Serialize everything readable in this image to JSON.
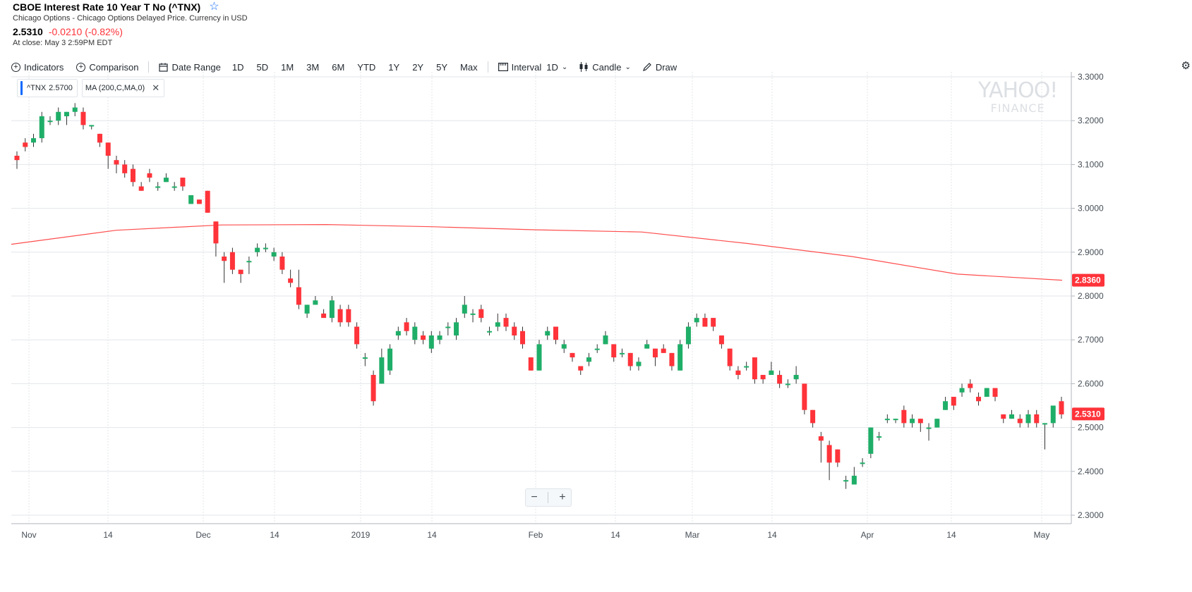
{
  "quote": {
    "title": "CBOE Interest Rate 10 Year T No (^TNX)",
    "exchange": "Chicago Options - Chicago Options Delayed Price. Currency in USD",
    "price": "2.5310",
    "change": "-0.0210 (-0.82%)",
    "close_time": "At close: May 3 2:59PM EDT"
  },
  "toolbar": {
    "indicators": "Indicators",
    "comparison": "Comparison",
    "date_range": "Date Range",
    "ranges": [
      "1D",
      "5D",
      "1M",
      "3M",
      "6M",
      "YTD",
      "1Y",
      "2Y",
      "5Y",
      "Max"
    ],
    "interval": "Interval",
    "interval_value": "1D",
    "chart_type": "Candle",
    "draw": "Draw",
    "icons": [
      "plus-circle-icon",
      "calendar-icon",
      "interval-icon",
      "candle-icon",
      "pencil-icon",
      "gear-icon"
    ]
  },
  "legend": {
    "symbol": "^TNX",
    "symbol_value": "2.5700",
    "indicator": "MA (200,C,MA,0)"
  },
  "watermark": {
    "line1": "YAHOO!",
    "line2": "FINANCE"
  },
  "zoom": {
    "minus": "−",
    "plus": "+"
  },
  "colors": {
    "up": "#1fae68",
    "down": "#ff333a",
    "ma": "#ff4d4d",
    "grid": "#e3e6ea"
  },
  "chart_data": {
    "type": "candlestick",
    "ylim": [
      2.28,
      3.3
    ],
    "y_ticks": [
      "3.3000",
      "3.2000",
      "3.1000",
      "3.0000",
      "2.9000",
      "2.8000",
      "2.7000",
      "2.6000",
      "2.5000",
      "2.4000",
      "2.3000"
    ],
    "x_ticks": [
      "Nov",
      "14",
      "Dec",
      "14",
      "2019",
      "14",
      "Feb",
      "14",
      "Mar",
      "14",
      "Apr",
      "14",
      "May"
    ],
    "price_label": "2.5310",
    "ma_label": "2.8360",
    "ma_series": {
      "name": "MA (200,C,MA,0)",
      "values": [
        2.918,
        2.95,
        2.962,
        2.963,
        2.958,
        2.951,
        2.946,
        2.92,
        2.89,
        2.85,
        2.836
      ]
    },
    "candles": [
      [
        3.12,
        3.11,
        3.13,
        3.09
      ],
      [
        3.15,
        3.14,
        3.16,
        3.13
      ],
      [
        3.15,
        3.16,
        3.17,
        3.14
      ],
      [
        3.16,
        3.21,
        3.22,
        3.15
      ],
      [
        3.2,
        3.2,
        3.21,
        3.19
      ],
      [
        3.2,
        3.22,
        3.23,
        3.19
      ],
      [
        3.21,
        3.22,
        3.22,
        3.19
      ],
      [
        3.22,
        3.23,
        3.24,
        3.21
      ],
      [
        3.22,
        3.19,
        3.23,
        3.18
      ],
      [
        3.19,
        3.19,
        3.19,
        3.18
      ],
      [
        3.17,
        3.15,
        3.17,
        3.14
      ],
      [
        3.15,
        3.12,
        3.15,
        3.09
      ],
      [
        3.11,
        3.1,
        3.12,
        3.08
      ],
      [
        3.1,
        3.08,
        3.11,
        3.07
      ],
      [
        3.09,
        3.06,
        3.1,
        3.05
      ],
      [
        3.05,
        3.04,
        3.06,
        3.04
      ],
      [
        3.08,
        3.07,
        3.09,
        3.06
      ],
      [
        3.05,
        3.05,
        3.06,
        3.04
      ],
      [
        3.06,
        3.07,
        3.08,
        3.06
      ],
      [
        3.05,
        3.05,
        3.06,
        3.04
      ],
      [
        3.07,
        3.05,
        3.07,
        3.04
      ],
      [
        3.01,
        3.03,
        3.03,
        3.01
      ],
      [
        3.02,
        3.01,
        3.02,
        3.01
      ],
      [
        3.04,
        2.99,
        3.04,
        2.99
      ],
      [
        2.97,
        2.92,
        2.97,
        2.89
      ],
      [
        2.89,
        2.88,
        2.9,
        2.83
      ],
      [
        2.9,
        2.86,
        2.91,
        2.85
      ],
      [
        2.86,
        2.85,
        2.86,
        2.83
      ],
      [
        2.88,
        2.88,
        2.89,
        2.85
      ],
      [
        2.9,
        2.91,
        2.92,
        2.89
      ],
      [
        2.91,
        2.91,
        2.92,
        2.9
      ],
      [
        2.89,
        2.9,
        2.91,
        2.88
      ],
      [
        2.89,
        2.86,
        2.9,
        2.85
      ],
      [
        2.84,
        2.83,
        2.86,
        2.82
      ],
      [
        2.82,
        2.78,
        2.86,
        2.77
      ],
      [
        2.76,
        2.78,
        2.78,
        2.75
      ],
      [
        2.78,
        2.79,
        2.8,
        2.78
      ],
      [
        2.76,
        2.75,
        2.77,
        2.75
      ],
      [
        2.75,
        2.79,
        2.8,
        2.74
      ],
      [
        2.77,
        2.74,
        2.78,
        2.73
      ],
      [
        2.77,
        2.74,
        2.78,
        2.73
      ],
      [
        2.73,
        2.69,
        2.74,
        2.68
      ],
      [
        2.66,
        2.66,
        2.67,
        2.64
      ],
      [
        2.62,
        2.56,
        2.63,
        2.55
      ],
      [
        2.6,
        2.66,
        2.68,
        2.6
      ],
      [
        2.63,
        2.68,
        2.69,
        2.62
      ],
      [
        2.71,
        2.72,
        2.73,
        2.7
      ],
      [
        2.74,
        2.72,
        2.75,
        2.71
      ],
      [
        2.7,
        2.73,
        2.74,
        2.69
      ],
      [
        2.71,
        2.7,
        2.72,
        2.69
      ],
      [
        2.68,
        2.71,
        2.72,
        2.67
      ],
      [
        2.7,
        2.71,
        2.72,
        2.69
      ],
      [
        2.73,
        2.73,
        2.74,
        2.71
      ],
      [
        2.71,
        2.74,
        2.75,
        2.7
      ],
      [
        2.76,
        2.78,
        2.8,
        2.75
      ],
      [
        2.76,
        2.76,
        2.77,
        2.74
      ],
      [
        2.77,
        2.75,
        2.78,
        2.74
      ],
      [
        2.72,
        2.72,
        2.73,
        2.71
      ],
      [
        2.73,
        2.74,
        2.76,
        2.72
      ],
      [
        2.75,
        2.73,
        2.76,
        2.72
      ],
      [
        2.73,
        2.71,
        2.74,
        2.7
      ],
      [
        2.72,
        2.69,
        2.73,
        2.68
      ],
      [
        2.66,
        2.63,
        2.66,
        2.63
      ],
      [
        2.63,
        2.69,
        2.7,
        2.63
      ],
      [
        2.71,
        2.72,
        2.73,
        2.7
      ],
      [
        2.73,
        2.7,
        2.73,
        2.69
      ],
      [
        2.68,
        2.69,
        2.7,
        2.67
      ],
      [
        2.67,
        2.66,
        2.67,
        2.65
      ],
      [
        2.64,
        2.63,
        2.64,
        2.62
      ],
      [
        2.65,
        2.66,
        2.67,
        2.64
      ],
      [
        2.68,
        2.68,
        2.69,
        2.67
      ],
      [
        2.69,
        2.71,
        2.72,
        2.69
      ],
      [
        2.69,
        2.66,
        2.69,
        2.65
      ],
      [
        2.67,
        2.67,
        2.68,
        2.66
      ],
      [
        2.67,
        2.64,
        2.67,
        2.63
      ],
      [
        2.64,
        2.65,
        2.66,
        2.63
      ],
      [
        2.68,
        2.69,
        2.7,
        2.68
      ],
      [
        2.68,
        2.66,
        2.68,
        2.64
      ],
      [
        2.68,
        2.67,
        2.69,
        2.67
      ],
      [
        2.67,
        2.64,
        2.67,
        2.63
      ],
      [
        2.63,
        2.69,
        2.7,
        2.63
      ],
      [
        2.69,
        2.73,
        2.74,
        2.68
      ],
      [
        2.74,
        2.75,
        2.76,
        2.73
      ],
      [
        2.75,
        2.73,
        2.76,
        2.73
      ],
      [
        2.75,
        2.73,
        2.75,
        2.72
      ],
      [
        2.71,
        2.69,
        2.71,
        2.68
      ],
      [
        2.68,
        2.64,
        2.68,
        2.63
      ],
      [
        2.63,
        2.62,
        2.64,
        2.61
      ],
      [
        2.64,
        2.64,
        2.65,
        2.63
      ],
      [
        2.66,
        2.61,
        2.66,
        2.6
      ],
      [
        2.62,
        2.61,
        2.62,
        2.6
      ],
      [
        2.62,
        2.63,
        2.65,
        2.62
      ],
      [
        2.62,
        2.6,
        2.63,
        2.59
      ],
      [
        2.6,
        2.6,
        2.61,
        2.59
      ],
      [
        2.61,
        2.62,
        2.64,
        2.6
      ],
      [
        2.6,
        2.54,
        2.6,
        2.53
      ],
      [
        2.54,
        2.51,
        2.54,
        2.5
      ],
      [
        2.48,
        2.47,
        2.49,
        2.42
      ],
      [
        2.46,
        2.42,
        2.47,
        2.38
      ],
      [
        2.45,
        2.42,
        2.45,
        2.41
      ],
      [
        2.38,
        2.38,
        2.39,
        2.36
      ],
      [
        2.37,
        2.39,
        2.41,
        2.37
      ],
      [
        2.42,
        2.42,
        2.43,
        2.41
      ],
      [
        2.44,
        2.5,
        2.5,
        2.43
      ],
      [
        2.48,
        2.48,
        2.49,
        2.47
      ],
      [
        2.52,
        2.52,
        2.53,
        2.51
      ],
      [
        2.52,
        2.52,
        2.52,
        2.51
      ],
      [
        2.54,
        2.51,
        2.55,
        2.5
      ],
      [
        2.51,
        2.52,
        2.53,
        2.5
      ],
      [
        2.52,
        2.51,
        2.52,
        2.49
      ],
      [
        2.5,
        2.5,
        2.51,
        2.47
      ],
      [
        2.5,
        2.52,
        2.52,
        2.5
      ],
      [
        2.54,
        2.56,
        2.57,
        2.54
      ],
      [
        2.57,
        2.55,
        2.57,
        2.54
      ],
      [
        2.58,
        2.59,
        2.6,
        2.57
      ],
      [
        2.6,
        2.59,
        2.61,
        2.58
      ],
      [
        2.57,
        2.56,
        2.58,
        2.55
      ],
      [
        2.57,
        2.59,
        2.59,
        2.57
      ],
      [
        2.59,
        2.57,
        2.59,
        2.56
      ],
      [
        2.53,
        2.52,
        2.53,
        2.51
      ],
      [
        2.52,
        2.53,
        2.54,
        2.52
      ],
      [
        2.52,
        2.51,
        2.53,
        2.5
      ],
      [
        2.51,
        2.53,
        2.54,
        2.5
      ],
      [
        2.53,
        2.51,
        2.54,
        2.5
      ],
      [
        2.51,
        2.51,
        2.51,
        2.45
      ],
      [
        2.51,
        2.55,
        2.55,
        2.5
      ],
      [
        2.56,
        2.53,
        2.57,
        2.52
      ]
    ]
  }
}
